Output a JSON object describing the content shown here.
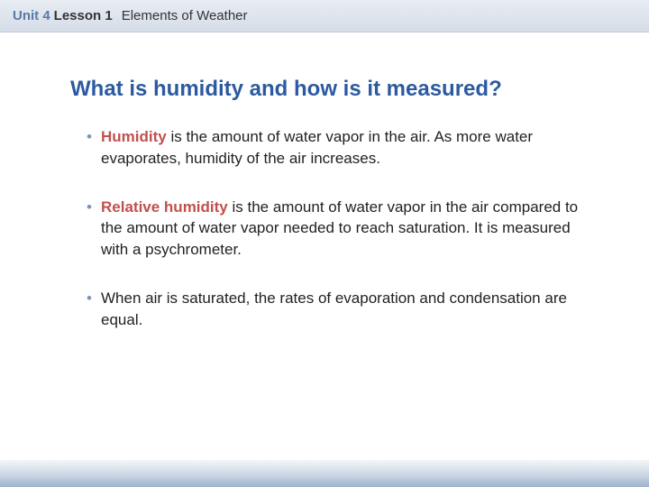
{
  "colors": {
    "unit_text": "#5a7aa8",
    "title_text": "#2c5aa0",
    "term_text": "#c0504d",
    "bullet_marker": "#7a94b8",
    "body_text": "#222222",
    "header_gradient_top": "#e8edf3",
    "header_gradient_bottom": "#d5dde8",
    "footer_gradient_top": "#f4f6f9",
    "footer_gradient_bottom": "#9db3cc"
  },
  "typography": {
    "header_fontsize": 15,
    "title_fontsize": 24,
    "body_fontsize": 17,
    "font_family": "Verdana"
  },
  "header": {
    "unit": "Unit 4",
    "lesson": "Lesson 1",
    "title": "Elements of Weather"
  },
  "slide": {
    "title": "What is humidity and how is it measured?",
    "bullets": [
      {
        "term": "Humidity",
        "rest": " is the amount of water vapor in the air. As more water evaporates, humidity of the air increases."
      },
      {
        "term": "Relative humidity",
        "rest": " is the amount of water vapor in the air compared to the amount of water vapor needed to reach saturation. It is measured with a psychrometer."
      },
      {
        "term": "",
        "rest": "When air is saturated, the rates of evaporation and condensation are equal."
      }
    ]
  }
}
